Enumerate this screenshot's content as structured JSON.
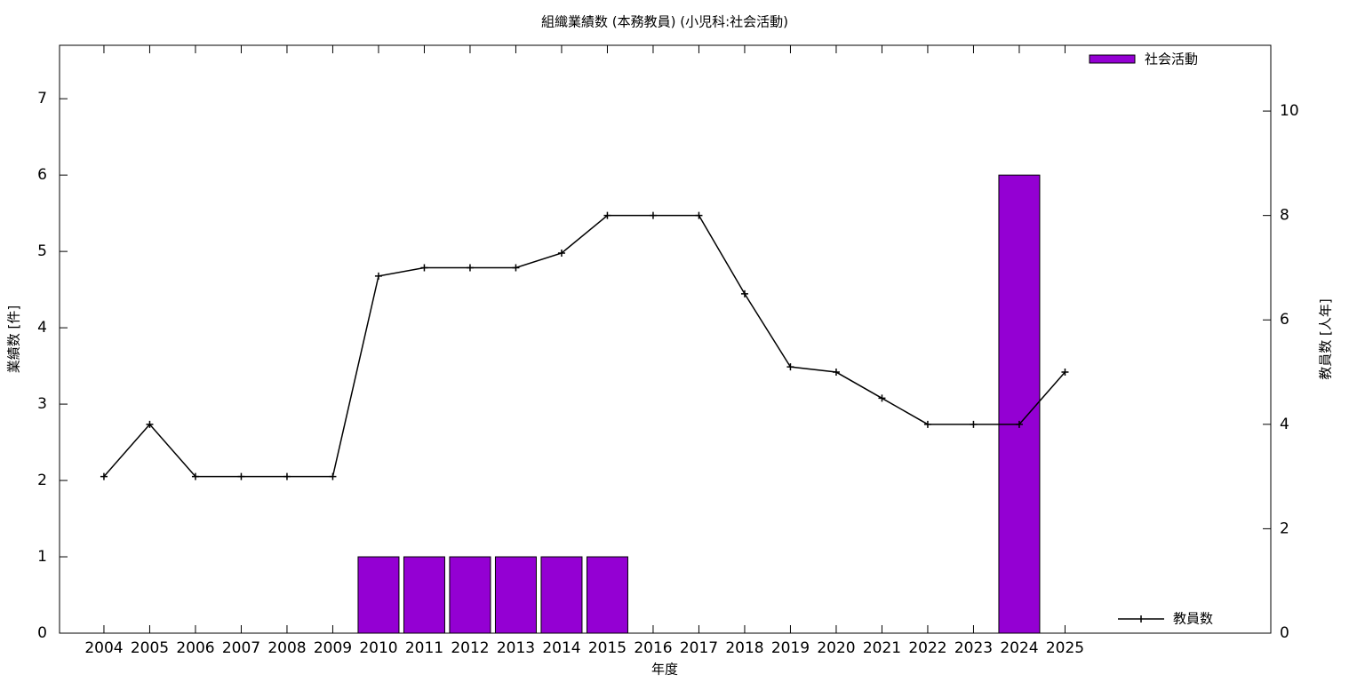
{
  "chart_data": {
    "type": "bar-line",
    "title": "組織業績数 (本務教員) (小児科:社会活動)",
    "x_label": "年度",
    "y_label": "業績数 [件]",
    "y2_label": "教員数 [人年]",
    "categories": [
      "2004",
      "2005",
      "2006",
      "2007",
      "2008",
      "2009",
      "2010",
      "2011",
      "2012",
      "2013",
      "2014",
      "2015",
      "2016",
      "2017",
      "2018",
      "2019",
      "2020",
      "2021",
      "2022",
      "2023",
      "2024",
      "2025"
    ],
    "series": [
      {
        "name": "社会活動",
        "type": "bar",
        "color": "#9400d3",
        "values": [
          0,
          0,
          0,
          0,
          0,
          0,
          1,
          1,
          1,
          1,
          1,
          1,
          0,
          0,
          0,
          0,
          0,
          0,
          0,
          0,
          6,
          0
        ]
      },
      {
        "name": "教員数",
        "type": "line",
        "color": "#000000",
        "axis": "y2",
        "values": [
          3,
          4,
          3,
          3,
          3,
          3,
          6.84,
          7,
          7,
          7,
          7.28,
          8,
          8,
          8,
          6.5,
          5.1,
          5,
          4.5,
          4,
          4,
          4,
          5
        ]
      }
    ],
    "ylim": [
      0,
      7.7
    ],
    "yticks": [
      0,
      1,
      2,
      3,
      4,
      5,
      6,
      7
    ],
    "y2lim": [
      0,
      11.26
    ],
    "y2ticks": [
      0,
      2,
      4,
      6,
      8,
      10
    ]
  }
}
